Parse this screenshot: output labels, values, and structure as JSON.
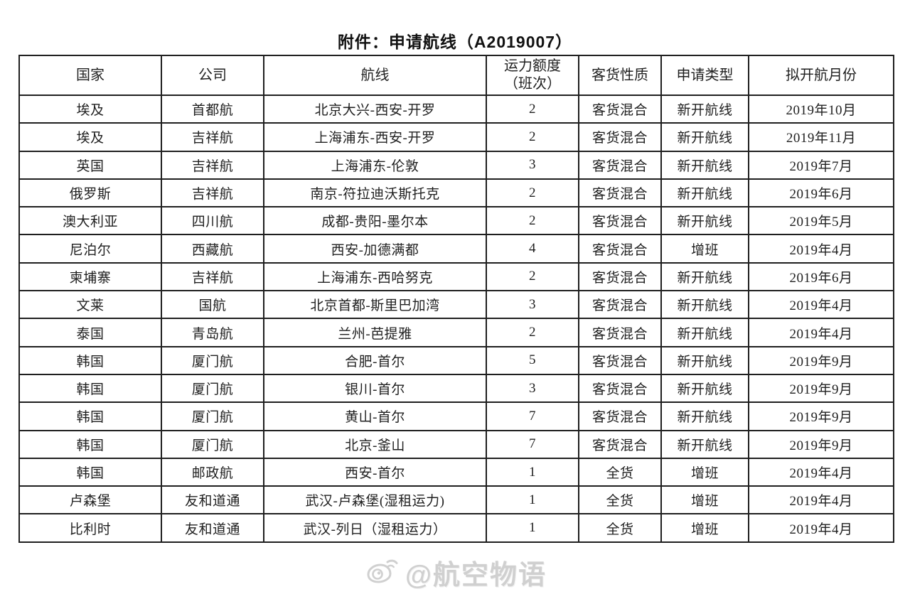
{
  "page": {
    "title": "附件：申请航线（A2019007）",
    "watermark_text": "@航空物语",
    "watermark_icon": "weibo-logo-icon"
  },
  "colors": {
    "border": "#1f1f1f",
    "text": "#1f1f1f",
    "watermark": "#c8c8c8"
  },
  "table": {
    "columns": [
      {
        "key": "country",
        "label": "国家",
        "label_lines": [
          "国家"
        ]
      },
      {
        "key": "company",
        "label": "公司",
        "label_lines": [
          "公司"
        ]
      },
      {
        "key": "route",
        "label": "航线",
        "label_lines": [
          "航线"
        ]
      },
      {
        "key": "capacity",
        "label": "运力额度（班次）",
        "label_lines": [
          "运力额度",
          "（班次）"
        ]
      },
      {
        "key": "nature",
        "label": "客货性质",
        "label_lines": [
          "客货性质"
        ]
      },
      {
        "key": "type",
        "label": "申请类型",
        "label_lines": [
          "申请类型"
        ]
      },
      {
        "key": "month",
        "label": "拟开航月份",
        "label_lines": [
          "拟开航月份"
        ]
      }
    ],
    "rows": [
      [
        "埃及",
        "首都航",
        "北京大兴-西安-开罗",
        "2",
        "客货混合",
        "新开航线",
        "2019年10月"
      ],
      [
        "埃及",
        "吉祥航",
        "上海浦东-西安-开罗",
        "2",
        "客货混合",
        "新开航线",
        "2019年11月"
      ],
      [
        "英国",
        "吉祥航",
        "上海浦东-伦敦",
        "3",
        "客货混合",
        "新开航线",
        "2019年7月"
      ],
      [
        "俄罗斯",
        "吉祥航",
        "南京-符拉迪沃斯托克",
        "2",
        "客货混合",
        "新开航线",
        "2019年6月"
      ],
      [
        "澳大利亚",
        "四川航",
        "成都-贵阳-墨尔本",
        "2",
        "客货混合",
        "新开航线",
        "2019年5月"
      ],
      [
        "尼泊尔",
        "西藏航",
        "西安-加德满都",
        "4",
        "客货混合",
        "增班",
        "2019年4月"
      ],
      [
        "柬埔寨",
        "吉祥航",
        "上海浦东-西哈努克",
        "2",
        "客货混合",
        "新开航线",
        "2019年6月"
      ],
      [
        "文莱",
        "国航",
        "北京首都-斯里巴加湾",
        "3",
        "客货混合",
        "新开航线",
        "2019年4月"
      ],
      [
        "泰国",
        "青岛航",
        "兰州-芭提雅",
        "2",
        "客货混合",
        "新开航线",
        "2019年4月"
      ],
      [
        "韩国",
        "厦门航",
        "合肥-首尔",
        "5",
        "客货混合",
        "新开航线",
        "2019年9月"
      ],
      [
        "韩国",
        "厦门航",
        "银川-首尔",
        "3",
        "客货混合",
        "新开航线",
        "2019年9月"
      ],
      [
        "韩国",
        "厦门航",
        "黄山-首尔",
        "7",
        "客货混合",
        "新开航线",
        "2019年9月"
      ],
      [
        "韩国",
        "厦门航",
        "北京-釜山",
        "7",
        "客货混合",
        "新开航线",
        "2019年9月"
      ],
      [
        "韩国",
        "邮政航",
        "西安-首尔",
        "1",
        "全货",
        "增班",
        "2019年4月"
      ],
      [
        "卢森堡",
        "友和道通",
        "武汉-卢森堡(湿租运力)",
        "1",
        "全货",
        "增班",
        "2019年4月"
      ],
      [
        "比利时",
        "友和道通",
        "武汉-列日（湿租运力）",
        "1",
        "全货",
        "增班",
        "2019年4月"
      ]
    ]
  }
}
